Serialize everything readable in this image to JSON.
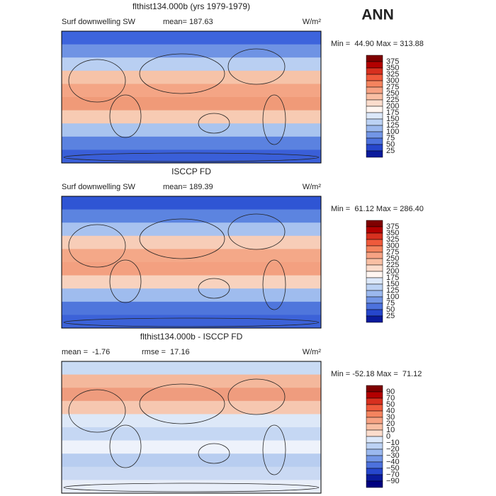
{
  "header": {
    "label": "ANN"
  },
  "panels": [
    {
      "title": "flthist134.000b (yrs 1979-1979)",
      "left_label": "Surf downwelling SW",
      "center_label": "mean= 187.63",
      "units": "W/m²",
      "min_max": "Min =  44.90 Max = 313.88",
      "colorbar": {
        "levels": [
          "375",
          "350",
          "325",
          "300",
          "275",
          "250",
          "225",
          "200",
          "175",
          "150",
          "125",
          "100",
          "75",
          "50",
          "25"
        ],
        "colors": [
          "#7f0000",
          "#b30000",
          "#d7301f",
          "#ef5a3c",
          "#f4845f",
          "#f6a283",
          "#f9bfa4",
          "#fcdccc",
          "#fff5f0",
          "#dce8fa",
          "#bcd2f4",
          "#9bb8ee",
          "#7396e6",
          "#4d72dd",
          "#2646cc",
          "#0a1a9c"
        ]
      }
    },
    {
      "title": "ISCCP FD",
      "left_label": "Surf downwelling SW",
      "center_label": "mean= 189.39",
      "units": "W/m²",
      "min_max": "Min =  61.12 Max = 286.40",
      "colorbar": {
        "levels": [
          "375",
          "350",
          "325",
          "300",
          "275",
          "250",
          "225",
          "200",
          "175",
          "150",
          "125",
          "100",
          "75",
          "50",
          "25"
        ],
        "colors": [
          "#7f0000",
          "#b30000",
          "#d7301f",
          "#ef5a3c",
          "#f4845f",
          "#f6a283",
          "#f9bfa4",
          "#fcdccc",
          "#fff5f0",
          "#dce8fa",
          "#bcd2f4",
          "#9bb8ee",
          "#7396e6",
          "#4d72dd",
          "#2646cc",
          "#0a1a9c"
        ]
      }
    },
    {
      "title": "flthist134.000b - ISCCP FD",
      "left_label": "mean =  -1.76",
      "center_label": "rmse =  17.16",
      "units": "W/m²",
      "min_max": "Min = -52.18 Max =  71.12",
      "colorbar": {
        "levels": [
          "90",
          "70",
          "50",
          "40",
          "30",
          "20",
          "10",
          "0",
          "−10",
          "−20",
          "−30",
          "−40",
          "−50",
          "−70",
          "−90"
        ],
        "colors": [
          "#7f0000",
          "#b30000",
          "#d7301f",
          "#ef5a3c",
          "#f4845f",
          "#f6a283",
          "#f9bfa4",
          "#fcdccc",
          "#dce8fa",
          "#bcd2f4",
          "#9bb8ee",
          "#7396e6",
          "#4d72dd",
          "#2646cc",
          "#0a1a9c",
          "#000080"
        ]
      }
    }
  ]
}
